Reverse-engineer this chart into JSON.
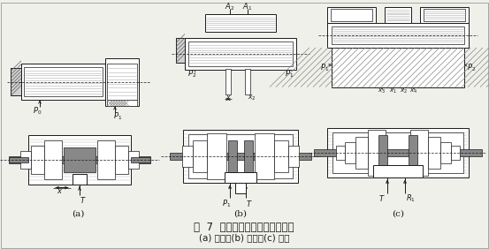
{
  "title_line1": "图  7  单边、双边和四边控制滑阀",
  "title_line2": "(a) 单边；(b) 双边；(c) 四边",
  "label_a": "(a)",
  "label_b": "(b)",
  "label_c": "(c)",
  "bg_color": "#f0f0eb",
  "line_color": "#1a1a1a",
  "white": "#ffffff",
  "gray1": "#b0b0b0",
  "gray2": "#888888",
  "gray3": "#606060",
  "gray4": "#d0d0d0",
  "hatch_gray": "#787878",
  "title_fontsize": 8.5,
  "sub_fontsize": 7.5,
  "label_fontsize": 7.5,
  "anno_fontsize": 6.5
}
